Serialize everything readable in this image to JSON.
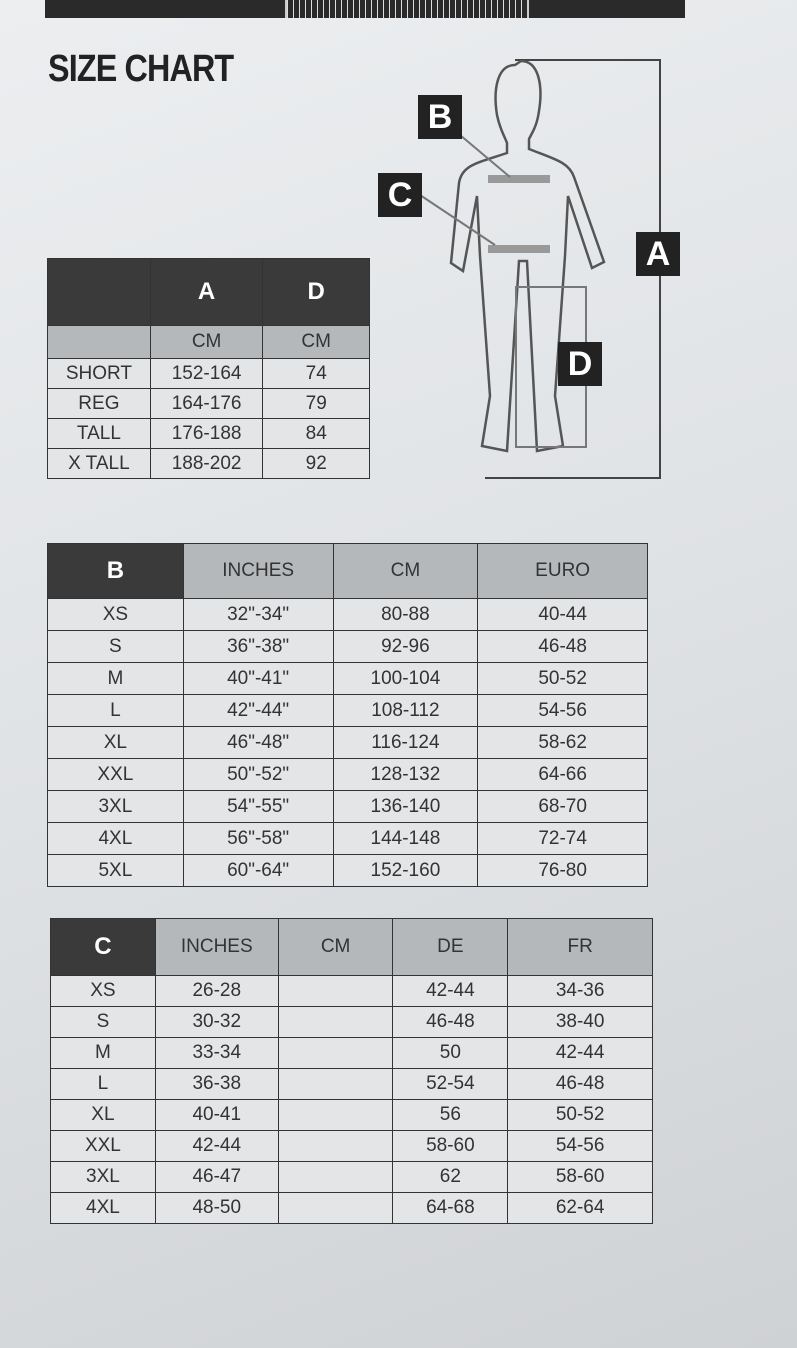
{
  "title": "SIZE CHART",
  "figure": {
    "labels": [
      "A",
      "B",
      "C",
      "D"
    ]
  },
  "table_a": {
    "headers": [
      "",
      "A",
      "D"
    ],
    "units": [
      "",
      "CM",
      "CM"
    ],
    "rows": [
      [
        "SHORT",
        "152-164",
        "74"
      ],
      [
        "REG",
        "164-176",
        "79"
      ],
      [
        "TALL",
        "176-188",
        "84"
      ],
      [
        "X TALL",
        "188-202",
        "92"
      ]
    ]
  },
  "table_b": {
    "headers": [
      "B",
      "INCHES",
      "CM",
      "EURO"
    ],
    "rows": [
      [
        "XS",
        "32\"-34\"",
        "80-88",
        "40-44"
      ],
      [
        "S",
        "36\"-38\"",
        "92-96",
        "46-48"
      ],
      [
        "M",
        "40\"-41\"",
        "100-104",
        "50-52"
      ],
      [
        "L",
        "42\"-44\"",
        "108-112",
        "54-56"
      ],
      [
        "XL",
        "46\"-48\"",
        "116-124",
        "58-62"
      ],
      [
        "XXL",
        "50\"-52\"",
        "128-132",
        "64-66"
      ],
      [
        "3XL",
        "54\"-55\"",
        "136-140",
        "68-70"
      ],
      [
        "4XL",
        "56\"-58\"",
        "144-148",
        "72-74"
      ],
      [
        "5XL",
        "60\"-64\"",
        "152-160",
        "76-80"
      ]
    ]
  },
  "table_c": {
    "headers": [
      "C",
      "INCHES",
      "CM",
      "DE",
      "FR"
    ],
    "rows": [
      [
        "XS",
        "26-28",
        "",
        "42-44",
        "34-36"
      ],
      [
        "S",
        "30-32",
        "",
        "46-48",
        "38-40"
      ],
      [
        "M",
        "33-34",
        "",
        "50",
        "42-44"
      ],
      [
        "L",
        "36-38",
        "",
        "52-54",
        "46-48"
      ],
      [
        "XL",
        "40-41",
        "",
        "56",
        "50-52"
      ],
      [
        "XXL",
        "42-44",
        "",
        "58-60",
        "54-56"
      ],
      [
        "3XL",
        "46-47",
        "",
        "62",
        "58-60"
      ],
      [
        "4XL",
        "48-50",
        "",
        "64-68",
        "62-64"
      ]
    ]
  }
}
